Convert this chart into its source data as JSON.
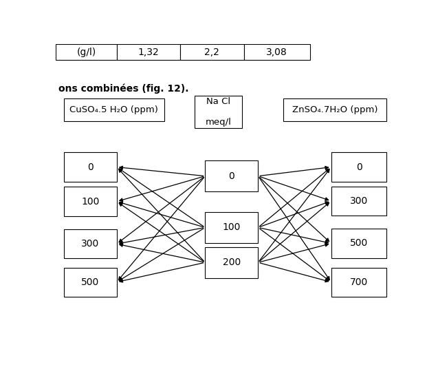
{
  "table_header_row": [
    "(g/l)",
    "1,32",
    "2,2",
    "3,08"
  ],
  "subtitle": "ons combinées (fig. 12).",
  "left_header": "CuSO₄.5 H₂O (ppm)",
  "center_header": "Na Cl\n\nmeq/l",
  "right_header": "ZnSO₄.7H₂O (ppm)",
  "left_values": [
    "0",
    "100",
    "300",
    "500"
  ],
  "center_values": [
    "0",
    "100",
    "200"
  ],
  "right_values": [
    "0",
    "300",
    "500",
    "700"
  ],
  "bg_color": "#ffffff",
  "box_edgecolor": "#000000",
  "arrow_color": "#000000",
  "font_size": 10
}
